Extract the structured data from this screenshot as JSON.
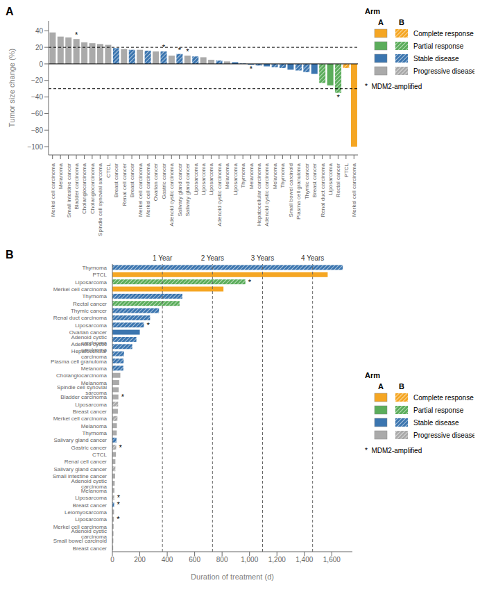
{
  "chart_data": [
    {
      "type": "bar",
      "title": "A",
      "categories": [
        "Merkel cell carcinoma",
        "Melanoma",
        "Small intestine cancer",
        "Bladder carcinoma",
        "Cholangiocarcinoma",
        "Cholangiocarcinoma",
        "Spindle cell synovial sarcoma",
        "CTCL",
        "Breast cancer",
        "Renal cell cancer",
        "Breast cancer",
        "Merkel cell carcinoma",
        "Merkel cell carcinoma",
        "Ovarian cancer",
        "Gastric cancer",
        "Adenoid cystic carcinoma",
        "Salivary gland cancer",
        "Salivary gland cancer",
        "Liposarcoma",
        "Liposarcoma",
        "Liposarcoma",
        "Adenoid cystic carcinoma",
        "Melanoma",
        "Liposarcoma",
        "Thymoma",
        "Melanoma",
        "Hepatocellular carcinoma",
        "Adenoid cystic carcinoma",
        "Melanoma",
        "Thymoma",
        "Small bowel carcinoid",
        "Plasma cell granuloma",
        "Thymic cancer",
        "Breast cancer",
        "Renal duct carcinoma",
        "Liposarcoma",
        "Rectal cancer",
        "PTCL",
        "Merkel cell carcinoma"
      ],
      "values": [
        38,
        33,
        32,
        30,
        26,
        25,
        24,
        23,
        19,
        18,
        17,
        17,
        16,
        15,
        15,
        10,
        12,
        10,
        9,
        8,
        5,
        4,
        3,
        2,
        0.5,
        -1,
        -2,
        -3,
        -4,
        -5,
        -7,
        -8,
        -10,
        -12,
        -23,
        -26,
        -35,
        -5,
        -100
      ],
      "colors": [
        "#AAAAAA",
        "#AAAAAA",
        "#AAAAAA",
        "#AAAAAA",
        "#AAAAAA",
        "#AAAAAA",
        "#AAAAAA",
        "#AAAAAA",
        "#3B75AF",
        "#AAAAAA",
        "#3B75AF",
        "#AAAAAA",
        "#3B75AF",
        "#AAAAAA",
        "#3B75AF",
        "#AAAAAA",
        "#3B75AF",
        "#AAAAAA",
        "#3B75AF",
        "#AAAAAA",
        "#AAAAAA",
        "#3B75AF",
        "#AAAAAA",
        "#3B75AF",
        "#3B75AF",
        "#3B75AF",
        "#3B75AF",
        "#3B75AF",
        "#3B75AF",
        "#3B75AF",
        "#3B75AF",
        "#3B75AF",
        "#3B75AF",
        "#3B75AF",
        "#5BAD5B",
        "#5BAD5B",
        "#5BAD5B",
        "#F5A623",
        "#F5A623"
      ],
      "arm": [
        "A",
        "A",
        "A",
        "A",
        "A",
        "A",
        "A",
        "A",
        "B",
        "A",
        "B",
        "A",
        "B",
        "A",
        "B",
        "A",
        "B",
        "A",
        "B",
        "A",
        "A",
        "B",
        "A",
        "A",
        "B",
        "A",
        "B",
        "A",
        "B",
        "B",
        "A",
        "B",
        "B",
        "A",
        "B",
        "A",
        "B",
        "B",
        "A"
      ],
      "mdm2": [
        false,
        false,
        false,
        true,
        false,
        false,
        false,
        false,
        false,
        false,
        false,
        false,
        false,
        false,
        true,
        false,
        true,
        true,
        false,
        false,
        false,
        false,
        false,
        false,
        false,
        true,
        false,
        false,
        false,
        false,
        false,
        false,
        false,
        false,
        false,
        false,
        true,
        false,
        false
      ],
      "mdm2_mark": "*",
      "ylabel": "Tumor size change (%)",
      "ylim": [
        -110,
        52
      ],
      "yticks": [
        {
          "value": -100,
          "label": "−100"
        },
        {
          "value": -80,
          "label": "−80"
        },
        {
          "value": -60,
          "label": "−60"
        },
        {
          "value": -40,
          "label": "−40"
        },
        {
          "value": -20,
          "label": "−20"
        },
        0,
        20,
        40
      ],
      "hlines": [
        20,
        -30
      ],
      "baseline": 0,
      "grid": false,
      "legend": "right",
      "legend_title": "Arm",
      "arm_labels": [
        "A",
        "B"
      ],
      "legend_items": [
        {
          "name": "Complete response",
          "color": "#F5A623"
        },
        {
          "name": "Partial response",
          "color": "#5BAD5B"
        },
        {
          "name": "Stable disease",
          "color": "#3B75AF"
        },
        {
          "name": "Progressive disease",
          "color": "#AAAAAA"
        }
      ],
      "annotations": [
        "*  MDM2-amplified"
      ]
    },
    {
      "type": "bar",
      "orientation": "horizontal",
      "title": "B",
      "categories": [
        "Thymoma",
        "PTCL",
        "Liposarcoma",
        "Merkel cell carcinoma",
        "Thymoma",
        "Rectal cancer",
        "Thymic cancer",
        "Renal duct carcinoma",
        "Liposarcoma",
        "Ovarian cancer",
        "Adenoid cystic carcinoma",
        "Adenoid cystic carcinoma",
        "Hepatocellular carcinoma",
        "Plasma cell granuloma",
        "Melanoma",
        "Cholangiocarcinoma",
        "Melanoma",
        "Spindle cell synovial sarcoma",
        "Bladder carcinoma",
        "Liposarcoma",
        "Breast cancer",
        "Merkel cell carcinoma",
        "Melanoma",
        "Thymoma",
        "Salivary gland cancer",
        "Gastric cancer",
        "CTCL",
        "Renal cell cancer",
        "Salivary gland cancer",
        "Small intestine cancer",
        "Adenoid cystic carcinoma",
        "Melanoma",
        "Liposarcoma",
        "Breast cancer",
        "Leiomyosarcoma",
        "Liposarcoma",
        "Merkel cell carcinoma",
        "Adenoid cystic carcinoma",
        "Small bowel carcinoid",
        "Breast cancer"
      ],
      "values": [
        1680,
        1570,
        970,
        810,
        510,
        490,
        340,
        275,
        230,
        200,
        175,
        145,
        85,
        82,
        80,
        58,
        50,
        46,
        44,
        42,
        40,
        37,
        33,
        32,
        30,
        28,
        26,
        22,
        22,
        20,
        17,
        15,
        14,
        13,
        12,
        11,
        9,
        8,
        7,
        6
      ],
      "colors": [
        "#3B75AF",
        "#F5A623",
        "#5BAD5B",
        "#F5A623",
        "#3B75AF",
        "#5BAD5B",
        "#3B75AF",
        "#3B75AF",
        "#3B75AF",
        "#3B75AF",
        "#3B75AF",
        "#3B75AF",
        "#3B75AF",
        "#3B75AF",
        "#3B75AF",
        "#AAAAAA",
        "#AAAAAA",
        "#AAAAAA",
        "#AAAAAA",
        "#AAAAAA",
        "#AAAAAA",
        "#AAAAAA",
        "#AAAAAA",
        "#AAAAAA",
        "#3B75AF",
        "#AAAAAA",
        "#AAAAAA",
        "#AAAAAA",
        "#AAAAAA",
        "#AAAAAA",
        "#AAAAAA",
        "#AAAAAA",
        "#AAAAAA",
        "#3B75AF",
        "#AAAAAA",
        "#AAAAAA",
        "#AAAAAA",
        "#AAAAAA",
        "#AAAAAA",
        "#AAAAAA"
      ],
      "arm": [
        "B",
        "A",
        "B",
        "A",
        "B",
        "B",
        "B",
        "B",
        "B",
        "A",
        "B",
        "B",
        "B",
        "B",
        "B",
        "A",
        "A",
        "A",
        "A",
        "B",
        "A",
        "B",
        "A",
        "A",
        "B",
        "B",
        "A",
        "A",
        "B",
        "A",
        "A",
        "A",
        "B",
        "B",
        "A",
        "A",
        "A",
        "A",
        "A",
        "A"
      ],
      "mdm2": [
        false,
        false,
        true,
        false,
        false,
        false,
        false,
        false,
        true,
        false,
        false,
        false,
        false,
        false,
        false,
        false,
        false,
        false,
        true,
        false,
        false,
        false,
        false,
        false,
        false,
        true,
        false,
        false,
        false,
        false,
        false,
        false,
        true,
        true,
        false,
        true,
        false,
        false,
        false,
        false
      ],
      "mdm2_mark": "*",
      "xlabel": "Duration of treatment (d)",
      "xlim": [
        0,
        1750
      ],
      "xticks": [
        0,
        200,
        400,
        600,
        800,
        {
          "value": 1000,
          "label": "1,000"
        },
        {
          "value": 1200,
          "label": "1,200"
        },
        {
          "value": 1400,
          "label": "1,400"
        },
        {
          "value": 1600,
          "label": "1,600"
        }
      ],
      "vlines": [
        {
          "value": 365,
          "label": "1 Year"
        },
        {
          "value": 730,
          "label": "2 Years"
        },
        {
          "value": 1095,
          "label": "3 Years"
        },
        {
          "value": 1460,
          "label": "4 Years"
        }
      ],
      "grid": false,
      "legend": "right",
      "legend_title": "Arm",
      "arm_labels": [
        "A",
        "B"
      ],
      "legend_items": [
        {
          "name": "Complete response",
          "color": "#F5A623"
        },
        {
          "name": "Partial response",
          "color": "#5BAD5B"
        },
        {
          "name": "Stable disease",
          "color": "#3B75AF"
        },
        {
          "name": "Progressive disease",
          "color": "#AAAAAA"
        }
      ],
      "annotations": [
        "*  MDM2-amplified"
      ]
    }
  ]
}
